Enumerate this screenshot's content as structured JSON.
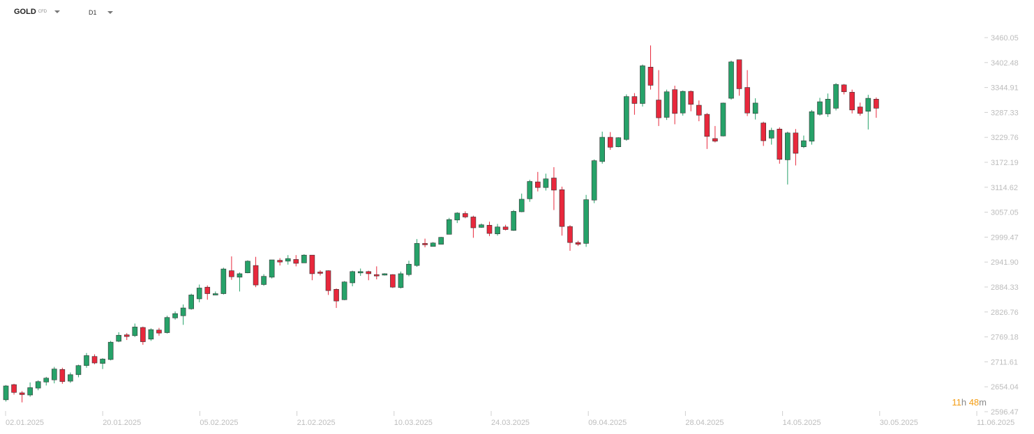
{
  "toolbar": {
    "symbol": "GOLD",
    "symbol_type": "CFD",
    "timeframe": "D1"
  },
  "countdown": {
    "hours": "11",
    "hours_unit": "h",
    "minutes": "48",
    "minutes_unit": "m"
  },
  "colors": {
    "up": "#26a269",
    "down": "#e8283c",
    "axis_text": "#bdbdbd",
    "countdown": "#f39c12"
  },
  "chart_data": {
    "type": "candlestick",
    "title": "",
    "xlabel": "",
    "ylabel": "",
    "ylim": [
      2596.47,
      3460.05
    ],
    "y_ticks": [
      "3460.05",
      "3402.48",
      "3344.91",
      "3287.33",
      "3229.76",
      "3172.19",
      "3114.62",
      "3057.05",
      "2999.47",
      "2941.90",
      "2884.33",
      "2826.76",
      "2769.18",
      "2711.61",
      "2654.04",
      "2596.47"
    ],
    "x_ticks": [
      "02.01.2025",
      "20.01.2025",
      "05.02.2025",
      "21.02.2025",
      "10.03.2025",
      "24.03.2025",
      "09.04.2025",
      "28.04.2025",
      "14.05.2025",
      "30.05.2025",
      "11.06.2025"
    ],
    "ohlc": [
      [
        2624,
        2656,
        2620,
        2658
      ],
      [
        2659,
        2641,
        2636,
        2661
      ],
      [
        2640,
        2636,
        2618,
        2644
      ],
      [
        2635,
        2652,
        2631,
        2664
      ],
      [
        2651,
        2666,
        2646,
        2669
      ],
      [
        2665,
        2674,
        2657,
        2677
      ],
      [
        2670,
        2695,
        2662,
        2700
      ],
      [
        2694,
        2666,
        2661,
        2698
      ],
      [
        2667,
        2682,
        2663,
        2687
      ],
      [
        2682,
        2703,
        2676,
        2705
      ],
      [
        2703,
        2726,
        2698,
        2732
      ],
      [
        2724,
        2709,
        2706,
        2729
      ],
      [
        2708,
        2718,
        2695,
        2720
      ],
      [
        2717,
        2757,
        2715,
        2760
      ],
      [
        2759,
        2773,
        2757,
        2780
      ],
      [
        2774,
        2770,
        2762,
        2778
      ],
      [
        2772,
        2792,
        2769,
        2800
      ],
      [
        2791,
        2758,
        2751,
        2793
      ],
      [
        2764,
        2786,
        2760,
        2789
      ],
      [
        2785,
        2778,
        2772,
        2790
      ],
      [
        2779,
        2814,
        2777,
        2818
      ],
      [
        2813,
        2823,
        2809,
        2828
      ],
      [
        2818,
        2836,
        2797,
        2844
      ],
      [
        2834,
        2866,
        2832,
        2869
      ],
      [
        2857,
        2882,
        2849,
        2890
      ],
      [
        2884,
        2869,
        2855,
        2888
      ],
      [
        2867,
        2869,
        2866,
        2874
      ],
      [
        2869,
        2926,
        2867,
        2929
      ],
      [
        2922,
        2908,
        2901,
        2955
      ],
      [
        2907,
        2915,
        2874,
        2918
      ],
      [
        2917,
        2944,
        2916,
        2946
      ],
      [
        2934,
        2889,
        2884,
        2954
      ],
      [
        2890,
        2909,
        2887,
        2914
      ],
      [
        2907,
        2947,
        2904,
        2947
      ],
      [
        2946,
        2942,
        2934,
        2951
      ],
      [
        2944,
        2950,
        2936,
        2958
      ],
      [
        2948,
        2939,
        2932,
        2958
      ],
      [
        2940,
        2958,
        2943,
        2960
      ],
      [
        2958,
        2915,
        2900,
        2958
      ],
      [
        2919,
        2918,
        2911,
        2923
      ],
      [
        2922,
        2876,
        2866,
        2923
      ],
      [
        2879,
        2852,
        2836,
        2881
      ],
      [
        2855,
        2896,
        2854,
        2898
      ],
      [
        2894,
        2920,
        2886,
        2922
      ],
      [
        2917,
        2920,
        2910,
        2927
      ],
      [
        2920,
        2915,
        2900,
        2922
      ],
      [
        2913,
        2910,
        2902,
        2932
      ],
      [
        2912,
        2915,
        2911,
        2916
      ],
      [
        2913,
        2884,
        2882,
        2914
      ],
      [
        2883,
        2915,
        2881,
        2920
      ],
      [
        2913,
        2937,
        2909,
        2945
      ],
      [
        2934,
        2985,
        2931,
        2995
      ],
      [
        2985,
        2982,
        2976,
        2996
      ],
      [
        2978,
        2986,
        2978,
        2988
      ],
      [
        2983,
        2999,
        2983,
        3000
      ],
      [
        3006,
        3040,
        3006,
        3044
      ],
      [
        3039,
        3055,
        3032,
        3057
      ],
      [
        3054,
        3046,
        3043,
        3059
      ],
      [
        3046,
        3021,
        2998,
        3049
      ],
      [
        3022,
        3028,
        3021,
        3031
      ],
      [
        3027,
        3008,
        3002,
        3035
      ],
      [
        3007,
        3023,
        3003,
        3030
      ],
      [
        3023,
        3017,
        3015,
        3028
      ],
      [
        3015,
        3059,
        3014,
        3062
      ],
      [
        3058,
        3087,
        3057,
        3100
      ],
      [
        3088,
        3128,
        3081,
        3132
      ],
      [
        3127,
        3114,
        3105,
        3150
      ],
      [
        3114,
        3134,
        3107,
        3146
      ],
      [
        3136,
        3108,
        3062,
        3161
      ],
      [
        3109,
        3024,
        3003,
        3116
      ],
      [
        3024,
        2987,
        2968,
        3027
      ],
      [
        2987,
        2983,
        2979,
        2991
      ],
      [
        2985,
        3086,
        2977,
        3097
      ],
      [
        3085,
        3176,
        3078,
        3179
      ],
      [
        3174,
        3230,
        3169,
        3243
      ],
      [
        3230,
        3207,
        3201,
        3242
      ],
      [
        3208,
        3229,
        3207,
        3230
      ],
      [
        3225,
        3324,
        3222,
        3329
      ],
      [
        3324,
        3308,
        3282,
        3332
      ],
      [
        3308,
        3395,
        3301,
        3398
      ],
      [
        3392,
        3350,
        3340,
        3442
      ],
      [
        3316,
        3275,
        3256,
        3385
      ],
      [
        3276,
        3335,
        3270,
        3340
      ],
      [
        3340,
        3285,
        3260,
        3349
      ],
      [
        3286,
        3336,
        3280,
        3338
      ],
      [
        3336,
        3306,
        3290,
        3338
      ],
      [
        3304,
        3281,
        3267,
        3315
      ],
      [
        3283,
        3232,
        3203,
        3286
      ],
      [
        3227,
        3221,
        3218,
        3256
      ],
      [
        3233,
        3309,
        3232,
        3310
      ],
      [
        3320,
        3404,
        3317,
        3407
      ],
      [
        3409,
        3342,
        3326,
        3409
      ],
      [
        3345,
        3286,
        3279,
        3385
      ],
      [
        3285,
        3309,
        3271,
        3320
      ],
      [
        3263,
        3222,
        3210,
        3266
      ],
      [
        3228,
        3246,
        3213,
        3252
      ],
      [
        3249,
        3179,
        3169,
        3253
      ],
      [
        3178,
        3240,
        3121,
        3243
      ],
      [
        3240,
        3193,
        3165,
        3249
      ],
      [
        3208,
        3222,
        3205,
        3234
      ],
      [
        3221,
        3289,
        3213,
        3293
      ],
      [
        3283,
        3312,
        3280,
        3321
      ],
      [
        3284,
        3318,
        3277,
        3331
      ],
      [
        3297,
        3352,
        3292,
        3355
      ],
      [
        3351,
        3335,
        3329,
        3353
      ],
      [
        3334,
        3293,
        3285,
        3340
      ],
      [
        3300,
        3285,
        3280,
        3310
      ],
      [
        3290,
        3320,
        3248,
        3328
      ],
      [
        3318,
        3297,
        3275,
        3322
      ]
    ]
  }
}
